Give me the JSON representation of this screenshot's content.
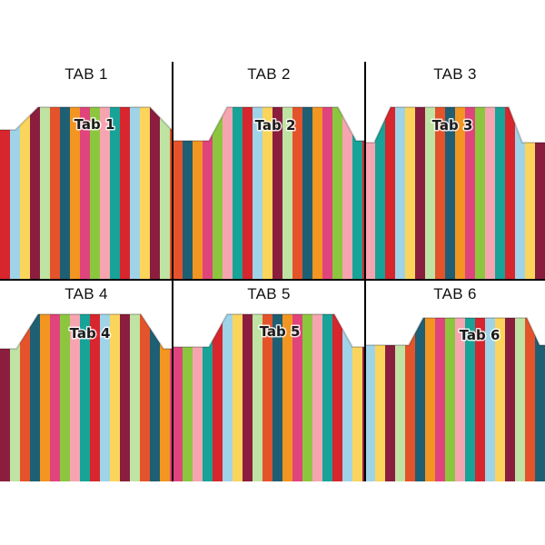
{
  "tabs": [
    {
      "title": "TAB 1",
      "label": "Tab 1"
    },
    {
      "title": "TAB 2",
      "label": "Tab 2"
    },
    {
      "title": "TAB 3",
      "label": "Tab 3"
    },
    {
      "title": "TAB 4",
      "label": "Tab 4"
    },
    {
      "title": "TAB 5",
      "label": "Tab 5"
    },
    {
      "title": "TAB 6",
      "label": "Tab 6"
    }
  ],
  "stripe_colors": [
    "#d7262e",
    "#f29521",
    "#fbd55b",
    "#8cc63f",
    "#bfe3a2",
    "#17a398",
    "#1e5f74",
    "#9fd3e8",
    "#e0447c",
    "#8b1e3f",
    "#f6a5b0",
    "#e5532b"
  ]
}
